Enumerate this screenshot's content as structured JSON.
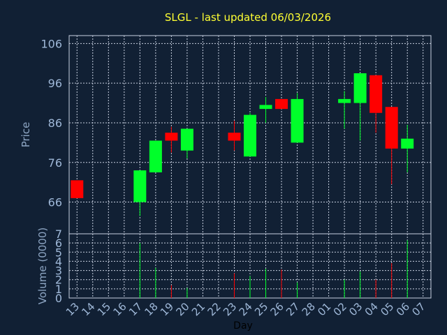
{
  "chart_data": {
    "type": "candlestick",
    "title": "SLGL - last updated 06/03/2026",
    "xlabel": "Day",
    "colors": {
      "background": "#112034",
      "up": "#00ff2a",
      "down": "#ff0000",
      "grid": "#c8d0e0",
      "axis_text": "#9fb8d8",
      "title": "#ffff33"
    },
    "x": [
      "13",
      "14",
      "15",
      "16",
      "17",
      "18",
      "19",
      "20",
      "21",
      "22",
      "23",
      "24",
      "25",
      "26",
      "27",
      "28",
      "01",
      "02",
      "03",
      "04",
      "05",
      "06",
      "07"
    ],
    "price_panel": {
      "ylabel": "Price",
      "ylim": [
        58,
        108
      ],
      "yticks": [
        66,
        76,
        86,
        96,
        106
      ],
      "grid": true,
      "candles": [
        {
          "day": "13",
          "open": 71.5,
          "high": 71.5,
          "low": 67.0,
          "close": 67.0
        },
        {
          "day": "17",
          "open": 66.0,
          "high": 74.0,
          "low": 62.5,
          "close": 74.0
        },
        {
          "day": "18",
          "open": 73.5,
          "high": 81.5,
          "low": 73.5,
          "close": 81.5
        },
        {
          "day": "19",
          "open": 83.5,
          "high": 85.0,
          "low": 78.5,
          "close": 81.5
        },
        {
          "day": "20",
          "open": 79.0,
          "high": 84.5,
          "low": 77.0,
          "close": 84.5
        },
        {
          "day": "23",
          "open": 83.5,
          "high": 86.5,
          "low": 79.0,
          "close": 81.5
        },
        {
          "day": "24",
          "open": 77.5,
          "high": 88.5,
          "low": 77.5,
          "close": 88.0
        },
        {
          "day": "25",
          "open": 89.5,
          "high": 92.5,
          "low": 86.0,
          "close": 90.5
        },
        {
          "day": "26",
          "open": 92.0,
          "high": 92.0,
          "low": 89.5,
          "close": 89.5
        },
        {
          "day": "27",
          "open": 81.0,
          "high": 93.5,
          "low": 81.0,
          "close": 92.0
        },
        {
          "day": "02",
          "open": 91.0,
          "high": 94.0,
          "low": 84.5,
          "close": 92.0
        },
        {
          "day": "03",
          "open": 91.0,
          "high": 98.5,
          "low": 81.5,
          "close": 98.5
        },
        {
          "day": "04",
          "open": 98.0,
          "high": 98.0,
          "low": 83.5,
          "close": 88.5
        },
        {
          "day": "05",
          "open": 90.0,
          "high": 90.0,
          "low": 70.5,
          "close": 79.5
        },
        {
          "day": "06",
          "open": 79.5,
          "high": 85.5,
          "low": 73.5,
          "close": 82.0
        }
      ]
    },
    "volume_panel": {
      "ylabel": "Volume (0000)",
      "ylim": [
        0,
        7
      ],
      "yticks": [
        0,
        1,
        2,
        3,
        4,
        5,
        6,
        7
      ],
      "grid": true,
      "bars": [
        {
          "day": "17",
          "value": 6.0,
          "direction": "up"
        },
        {
          "day": "18",
          "value": 3.3,
          "direction": "up"
        },
        {
          "day": "19",
          "value": 1.4,
          "direction": "down"
        },
        {
          "day": "20",
          "value": 1.1,
          "direction": "up"
        },
        {
          "day": "23",
          "value": 2.7,
          "direction": "down"
        },
        {
          "day": "24",
          "value": 2.4,
          "direction": "up"
        },
        {
          "day": "25",
          "value": 3.2,
          "direction": "up"
        },
        {
          "day": "26",
          "value": 3.1,
          "direction": "down"
        },
        {
          "day": "27",
          "value": 1.7,
          "direction": "up"
        },
        {
          "day": "02",
          "value": 2.0,
          "direction": "up"
        },
        {
          "day": "03",
          "value": 2.9,
          "direction": "up"
        },
        {
          "day": "04",
          "value": 2.0,
          "direction": "down"
        },
        {
          "day": "05",
          "value": 3.8,
          "direction": "down"
        },
        {
          "day": "06",
          "value": 6.3,
          "direction": "up"
        }
      ]
    }
  }
}
